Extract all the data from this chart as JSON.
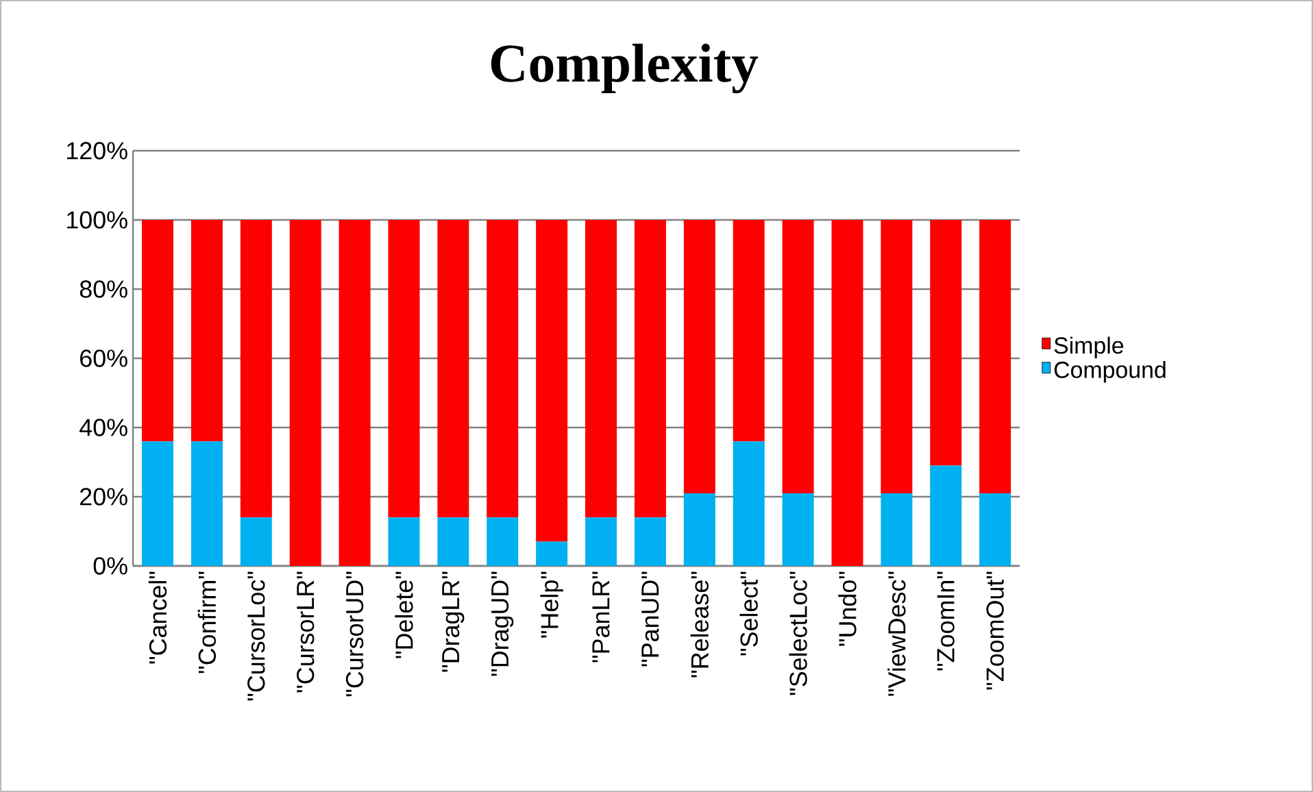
{
  "chart_data": {
    "type": "bar",
    "stacked": true,
    "title": "Complexity",
    "categories": [
      "\"Cancel\"",
      "\"Confirm\"",
      "\"CursorLoc\"",
      "\"CursorLR\"",
      "\"CursorUD\"",
      "\"Delete\"",
      "\"DragLR\"",
      "\"DragUD\"",
      "\"Help\"",
      "\"PanLR\"",
      "\"PanUD\"",
      "\"Release\"",
      "\"Select\"",
      "\"SelectLoc\"",
      "\"Undo\"",
      "\"ViewDesc\"",
      "\"ZoomIn\"",
      "\"ZoomOut\""
    ],
    "series": [
      {
        "name": "Compound",
        "color": "#00b0f0",
        "values": [
          36,
          36,
          14,
          0,
          0,
          14,
          14,
          14,
          7,
          14,
          14,
          21,
          36,
          21,
          0,
          21,
          29,
          21
        ]
      },
      {
        "name": "Simple",
        "color": "#ff0000",
        "values": [
          64,
          64,
          86,
          100,
          100,
          86,
          86,
          86,
          93,
          86,
          86,
          79,
          64,
          79,
          100,
          79,
          71,
          79
        ]
      }
    ],
    "ylim": [
      0,
      120
    ],
    "yticks": [
      {
        "value": 0,
        "label": "0%"
      },
      {
        "value": 20,
        "label": "20%"
      },
      {
        "value": 40,
        "label": "40%"
      },
      {
        "value": 60,
        "label": "60%"
      },
      {
        "value": 80,
        "label": "80%"
      },
      {
        "value": 100,
        "label": "100%"
      },
      {
        "value": 120,
        "label": "120%"
      }
    ],
    "grid": "y",
    "legend": "right"
  }
}
